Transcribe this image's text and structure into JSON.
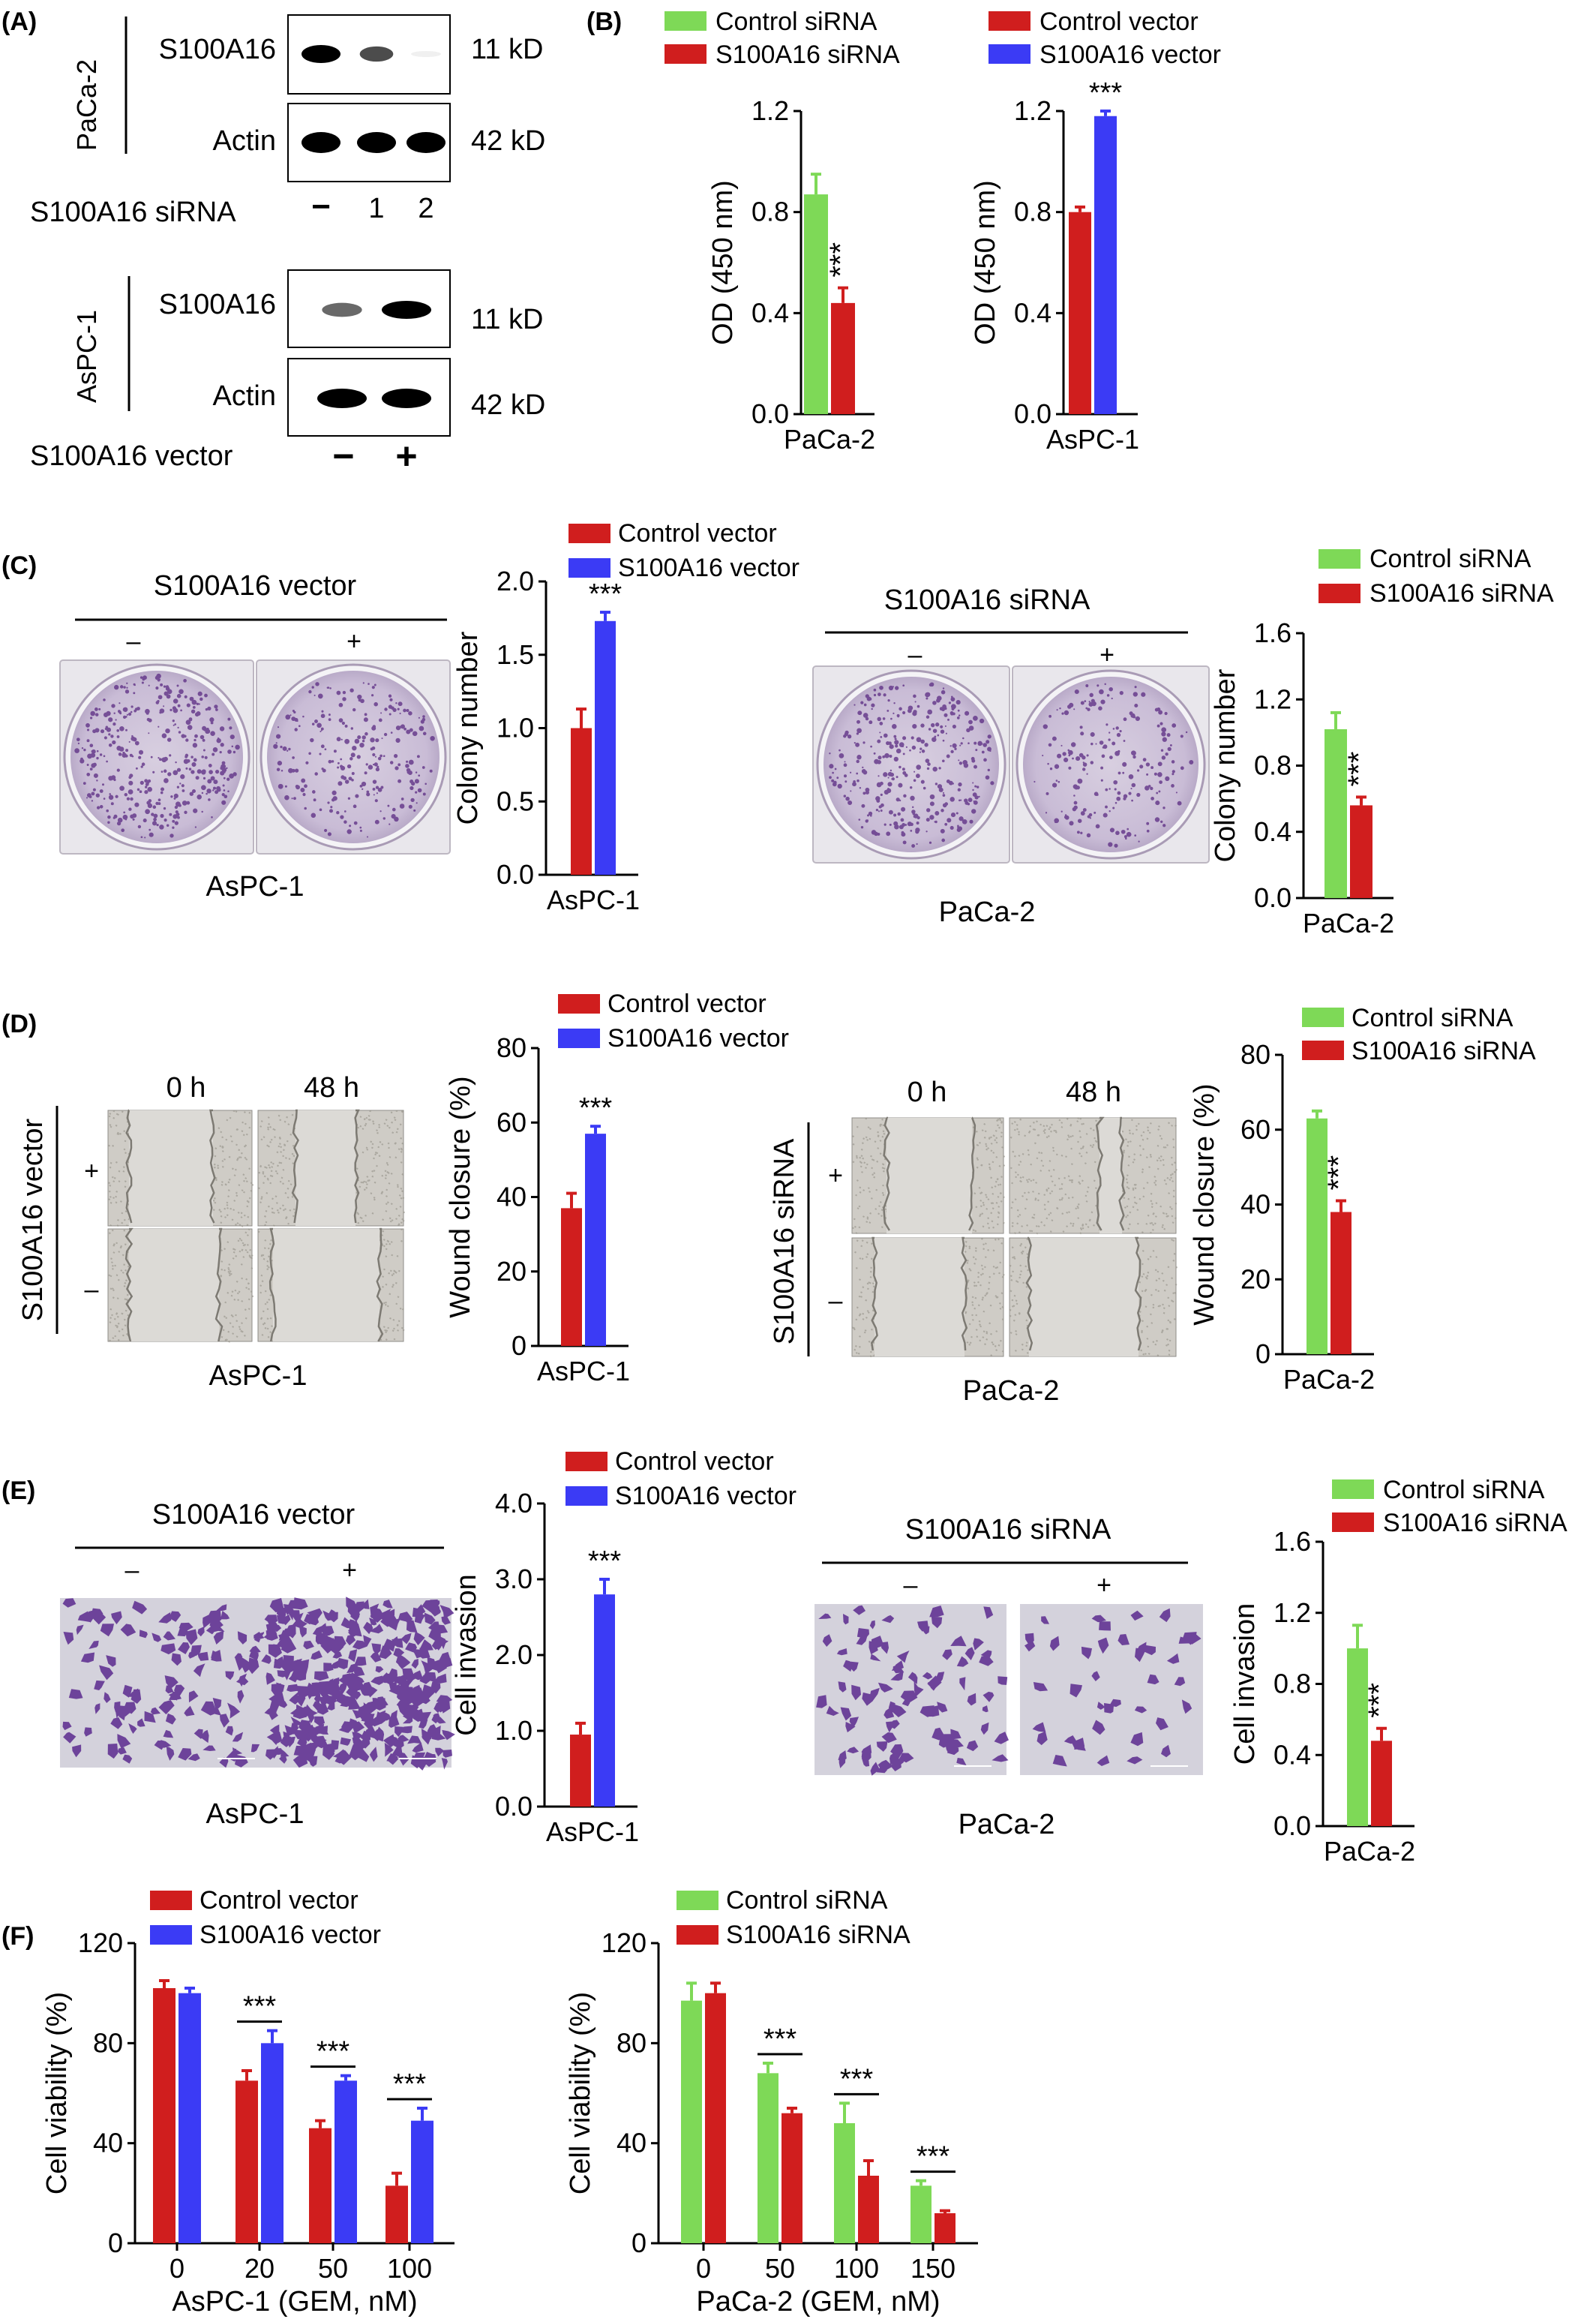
{
  "colors": {
    "green": "#7ED957",
    "red": "#D01E1E",
    "blue": "#3B3BF5",
    "stain_bg": "#D6CCDB",
    "stain_dot": "#5A2A82",
    "wound_bg": "#C9C7C2",
    "invasion_bg": "#D4D2DC",
    "invasion_cell": "#5B2A8E"
  },
  "panels": {
    "A": {
      "letter": "(A)",
      "top": {
        "cell_line": "PaCa-2",
        "rows": [
          {
            "protein": "S100A16",
            "size": "11 kD",
            "intensity": [
              1.0,
              0.6,
              0.05
            ]
          },
          {
            "protein": "Actin",
            "size": "42 kD",
            "intensity": [
              1.0,
              1.0,
              1.0
            ]
          }
        ],
        "treatment_label": "S100A16 siRNA",
        "lanes": [
          "−",
          "1",
          "2"
        ]
      },
      "bottom": {
        "cell_line": "AsPC-1",
        "rows": [
          {
            "protein": "S100A16",
            "size": "11 kD",
            "intensity": [
              0.45,
              1.0
            ]
          },
          {
            "protein": "Actin",
            "size": "42 kD",
            "intensity": [
              1.0,
              1.0
            ]
          }
        ],
        "treatment_label": "S100A16 vector",
        "lanes": [
          "−",
          "+"
        ]
      }
    },
    "B": {
      "letter": "(B)",
      "legend": [
        {
          "label": "Control siRNA",
          "color": "green"
        },
        {
          "label": "S100A16 siRNA",
          "color": "red"
        },
        {
          "label": "Control vector",
          "color": "red"
        },
        {
          "label": "S100A16 vector",
          "color": "blue"
        }
      ]
    },
    "C": {
      "letter": "(C)",
      "left": {
        "header": "S100A16 vector",
        "signs": [
          "–",
          "+"
        ],
        "cell_line": "AsPC-1",
        "densities": [
          0.55,
          0.35
        ]
      },
      "right": {
        "header": "S100A16 siRNA",
        "signs": [
          "–",
          "+"
        ],
        "cell_line": "PaCa-2",
        "densities": [
          0.5,
          0.3
        ]
      },
      "legend_right": [
        {
          "label": "Control siRNA",
          "color": "green"
        },
        {
          "label": "S100A16 siRNA",
          "color": "red"
        }
      ]
    },
    "D": {
      "letter": "(D)",
      "left": {
        "times": [
          "0 h",
          "48 h"
        ],
        "side_label": "S100A16 vector",
        "signs": [
          "+",
          "–"
        ],
        "cell_line": "AsPC-1"
      },
      "right": {
        "times": [
          "0 h",
          "48 h"
        ],
        "side_label": "S100A16 siRNA",
        "signs": [
          "+",
          "–"
        ],
        "cell_line": "PaCa-2"
      },
      "legend_right": [
        {
          "label": "Control siRNA",
          "color": "green"
        },
        {
          "label": "S100A16 siRNA",
          "color": "red"
        }
      ]
    },
    "E": {
      "letter": "(E)",
      "left": {
        "header": "S100A16 vector",
        "signs": [
          "–",
          "+"
        ],
        "cell_line": "AsPC-1"
      },
      "right": {
        "header": "S100A16 siRNA",
        "signs": [
          "–",
          "+"
        ],
        "cell_line": "PaCa-2"
      },
      "legend_right": [
        {
          "label": "Control siRNA",
          "color": "green"
        },
        {
          "label": "S100A16 siRNA",
          "color": "red"
        }
      ]
    },
    "F": {
      "letter": "(F)"
    }
  },
  "chart_data": [
    {
      "id": "B-left",
      "type": "bar",
      "categories": [
        "PaCa-2"
      ],
      "ylabel": "OD (450 nm)",
      "ylim": [
        0,
        1.2
      ],
      "yticks": [
        "0.0",
        "0.4",
        "0.8",
        "1.2"
      ],
      "series": [
        {
          "name": "Control siRNA",
          "color": "green",
          "values": [
            0.87
          ],
          "errors": [
            0.08
          ]
        },
        {
          "name": "S100A16 siRNA",
          "color": "red",
          "values": [
            0.44
          ],
          "errors": [
            0.06
          ]
        }
      ],
      "annotations": [
        {
          "text": "***",
          "orientation": "vertical"
        }
      ],
      "legend": "none"
    },
    {
      "id": "B-right",
      "type": "bar",
      "categories": [
        "AsPC-1"
      ],
      "ylabel": "OD (450 nm)",
      "ylim": [
        0,
        1.2
      ],
      "yticks": [
        "0.0",
        "0.4",
        "0.8",
        "1.2"
      ],
      "series": [
        {
          "name": "Control vector",
          "color": "red",
          "values": [
            0.8
          ],
          "errors": [
            0.02
          ]
        },
        {
          "name": "S100A16 vector",
          "color": "blue",
          "values": [
            1.18
          ],
          "errors": [
            0.02
          ]
        }
      ],
      "annotations": [
        {
          "text": "***",
          "orientation": "horizontal"
        }
      ],
      "legend": "none"
    },
    {
      "id": "C-left",
      "type": "bar",
      "categories": [
        "AsPC-1"
      ],
      "ylabel": "Colony number",
      "ylim": [
        0,
        2.0
      ],
      "yticks": [
        "0.0",
        "0.5",
        "1.0",
        "1.5",
        "2.0"
      ],
      "series": [
        {
          "name": "Control vector",
          "color": "red",
          "values": [
            1.0
          ],
          "errors": [
            0.13
          ]
        },
        {
          "name": "S100A16 vector",
          "color": "blue",
          "values": [
            1.73
          ],
          "errors": [
            0.06
          ]
        }
      ],
      "annotations": [
        {
          "text": "***",
          "orientation": "horizontal"
        }
      ],
      "legend": "top"
    },
    {
      "id": "C-right",
      "type": "bar",
      "categories": [
        "PaCa-2"
      ],
      "ylabel": "Colony number",
      "ylim": [
        0,
        1.6
      ],
      "yticks": [
        "0.0",
        "0.4",
        "0.8",
        "1.2",
        "1.6"
      ],
      "series": [
        {
          "name": "Control siRNA",
          "color": "green",
          "values": [
            1.02
          ],
          "errors": [
            0.1
          ]
        },
        {
          "name": "S100A16 siRNA",
          "color": "red",
          "values": [
            0.56
          ],
          "errors": [
            0.05
          ]
        }
      ],
      "annotations": [
        {
          "text": "***",
          "orientation": "vertical"
        }
      ],
      "legend": "none"
    },
    {
      "id": "D-left",
      "type": "bar",
      "categories": [
        "AsPC-1"
      ],
      "ylabel": "Wound closure (%)",
      "ylim": [
        0,
        80
      ],
      "yticks": [
        "0",
        "20",
        "40",
        "60",
        "80"
      ],
      "series": [
        {
          "name": "Control vector",
          "color": "red",
          "values": [
            37
          ],
          "errors": [
            4
          ]
        },
        {
          "name": "S100A16 vector",
          "color": "blue",
          "values": [
            57
          ],
          "errors": [
            2
          ]
        }
      ],
      "annotations": [
        {
          "text": "***",
          "orientation": "horizontal"
        }
      ],
      "legend": "top"
    },
    {
      "id": "D-right",
      "type": "bar",
      "categories": [
        "PaCa-2"
      ],
      "ylabel": "Wound closure (%)",
      "ylim": [
        0,
        80
      ],
      "yticks": [
        "0",
        "20",
        "40",
        "60",
        "80"
      ],
      "series": [
        {
          "name": "Control siRNA",
          "color": "green",
          "values": [
            63
          ],
          "errors": [
            2
          ]
        },
        {
          "name": "S100A16 siRNA",
          "color": "red",
          "values": [
            38
          ],
          "errors": [
            3
          ]
        }
      ],
      "annotations": [
        {
          "text": "***",
          "orientation": "vertical"
        }
      ],
      "legend": "none"
    },
    {
      "id": "E-left",
      "type": "bar",
      "categories": [
        "AsPC-1"
      ],
      "ylabel": "Cell invasion",
      "ylim": [
        0,
        4.0
      ],
      "yticks": [
        "0.0",
        "1.0",
        "2.0",
        "3.0",
        "4.0"
      ],
      "series": [
        {
          "name": "Control vector",
          "color": "red",
          "values": [
            0.95
          ],
          "errors": [
            0.15
          ]
        },
        {
          "name": "S100A16 vector",
          "color": "blue",
          "values": [
            2.8
          ],
          "errors": [
            0.2
          ]
        }
      ],
      "annotations": [
        {
          "text": "***",
          "orientation": "horizontal"
        }
      ],
      "legend": "top"
    },
    {
      "id": "E-right",
      "type": "bar",
      "categories": [
        "PaCa-2"
      ],
      "ylabel": "Cell invasion",
      "ylim": [
        0,
        1.6
      ],
      "yticks": [
        "0.0",
        "0.4",
        "0.8",
        "1.2",
        "1.6"
      ],
      "series": [
        {
          "name": "Control siRNA",
          "color": "green",
          "values": [
            1.0
          ],
          "errors": [
            0.13
          ]
        },
        {
          "name": "S100A16 siRNA",
          "color": "red",
          "values": [
            0.48
          ],
          "errors": [
            0.07
          ]
        }
      ],
      "annotations": [
        {
          "text": "***",
          "orientation": "vertical"
        }
      ],
      "legend": "none"
    },
    {
      "id": "F-left",
      "type": "bar",
      "categories": [
        "0",
        "20",
        "50",
        "100"
      ],
      "xlabel": "AsPC-1 (GEM, nM)",
      "ylabel": "Cell viability (%)",
      "ylim": [
        0,
        120
      ],
      "yticks": [
        "0",
        "40",
        "80",
        "120"
      ],
      "series": [
        {
          "name": "Control vector",
          "color": "red",
          "values": [
            102,
            65,
            46,
            23
          ],
          "errors": [
            3,
            4,
            3,
            5
          ]
        },
        {
          "name": "S100A16 vector",
          "color": "blue",
          "values": [
            100,
            80,
            65,
            49
          ],
          "errors": [
            2,
            5,
            2,
            5
          ]
        }
      ],
      "annotations": [
        {
          "text": "***",
          "groups": [
            1,
            2,
            3
          ]
        }
      ],
      "legend": "top"
    },
    {
      "id": "F-right",
      "type": "bar",
      "categories": [
        "0",
        "50",
        "100",
        "150"
      ],
      "xlabel": "PaCa-2 (GEM, nM)",
      "ylabel": "Cell viability (%)",
      "ylim": [
        0,
        120
      ],
      "yticks": [
        "0",
        "40",
        "80",
        "120"
      ],
      "series": [
        {
          "name": "Control siRNA",
          "color": "green",
          "values": [
            97,
            68,
            48,
            23
          ],
          "errors": [
            7,
            4,
            8,
            2
          ]
        },
        {
          "name": "S100A16 siRNA",
          "color": "red",
          "values": [
            100,
            52,
            27,
            12
          ],
          "errors": [
            4,
            2,
            6,
            1
          ]
        }
      ],
      "annotations": [
        {
          "text": "***",
          "groups": [
            1,
            2,
            3
          ]
        }
      ],
      "legend": "top"
    }
  ]
}
